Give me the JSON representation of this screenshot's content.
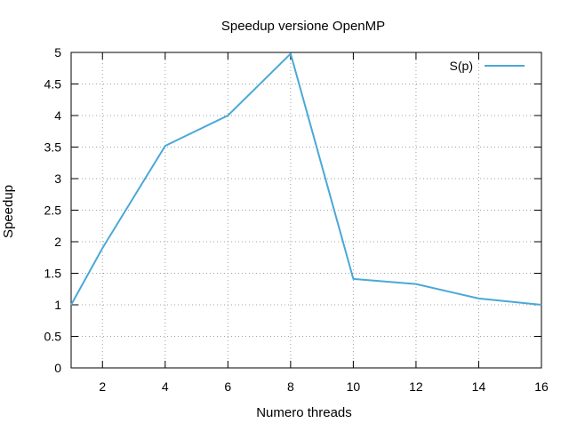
{
  "chart_data": {
    "type": "line",
    "title": "Speedup versione OpenMP",
    "xlabel": "Numero threads",
    "ylabel": "Speedup",
    "xlim": [
      1,
      16
    ],
    "ylim": [
      0,
      5
    ],
    "xticks": [
      2,
      4,
      6,
      8,
      10,
      12,
      14,
      16
    ],
    "yticks": [
      0,
      0.5,
      1,
      1.5,
      2,
      2.5,
      3,
      3.5,
      4,
      4.5,
      5
    ],
    "grid": true,
    "legend_position": "top-right",
    "series": [
      {
        "name": "S(p)",
        "color": "#4aa8d8",
        "x": [
          1,
          2,
          4,
          6,
          8,
          10,
          12,
          14,
          16
        ],
        "y": [
          1.0,
          1.9,
          3.52,
          4.0,
          4.98,
          1.41,
          1.33,
          1.1,
          1.0
        ]
      }
    ]
  }
}
